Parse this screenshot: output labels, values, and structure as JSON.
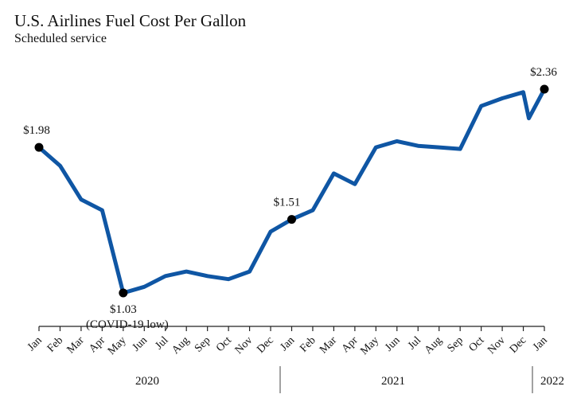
{
  "chart_data": {
    "type": "line",
    "title": "U.S. Airlines Fuel Cost Per Gallon",
    "subtitle": "Scheduled service",
    "xlabel": "",
    "ylabel": "",
    "ylim": [
      0.5,
      2.5
    ],
    "grid": false,
    "color": "#0f56a4",
    "x": [
      "Jan",
      "Feb",
      "Mar",
      "Apr",
      "May",
      "Jun",
      "Jul",
      "Aug",
      "Sep",
      "Oct",
      "Nov",
      "Dec",
      "Jan",
      "Feb",
      "Mar",
      "Apr",
      "May",
      "Jun",
      "Jul",
      "Aug",
      "Sep",
      "Oct",
      "Nov",
      "Dec",
      "Jan"
    ],
    "series": [
      {
        "name": "Fuel cost per gallon",
        "values": [
          1.98,
          1.86,
          1.64,
          1.57,
          1.03,
          1.07,
          1.14,
          1.17,
          1.14,
          1.12,
          1.17,
          1.43,
          1.51,
          1.57,
          1.81,
          1.74,
          1.98,
          2.02,
          1.99,
          1.98,
          1.97,
          2.25,
          2.3,
          2.34,
          2.36
        ],
        "dips": [
          {
            "after_index": 23,
            "value": 2.17
          }
        ]
      }
    ],
    "annotations": [
      {
        "index": 0,
        "label": "$1.98",
        "note": ""
      },
      {
        "index": 4,
        "label": "$1.03",
        "note": "(COVID-19 low)"
      },
      {
        "index": 12,
        "label": "$1.51",
        "note": ""
      },
      {
        "index": 24,
        "label": "$2.36",
        "note": ""
      }
    ],
    "years": [
      {
        "label": "2020",
        "start_index": 0,
        "end_index": 11
      },
      {
        "label": "2021",
        "start_index": 12,
        "end_index": 23
      },
      {
        "label": "2022",
        "start_index": 24,
        "end_index": 24
      }
    ]
  }
}
